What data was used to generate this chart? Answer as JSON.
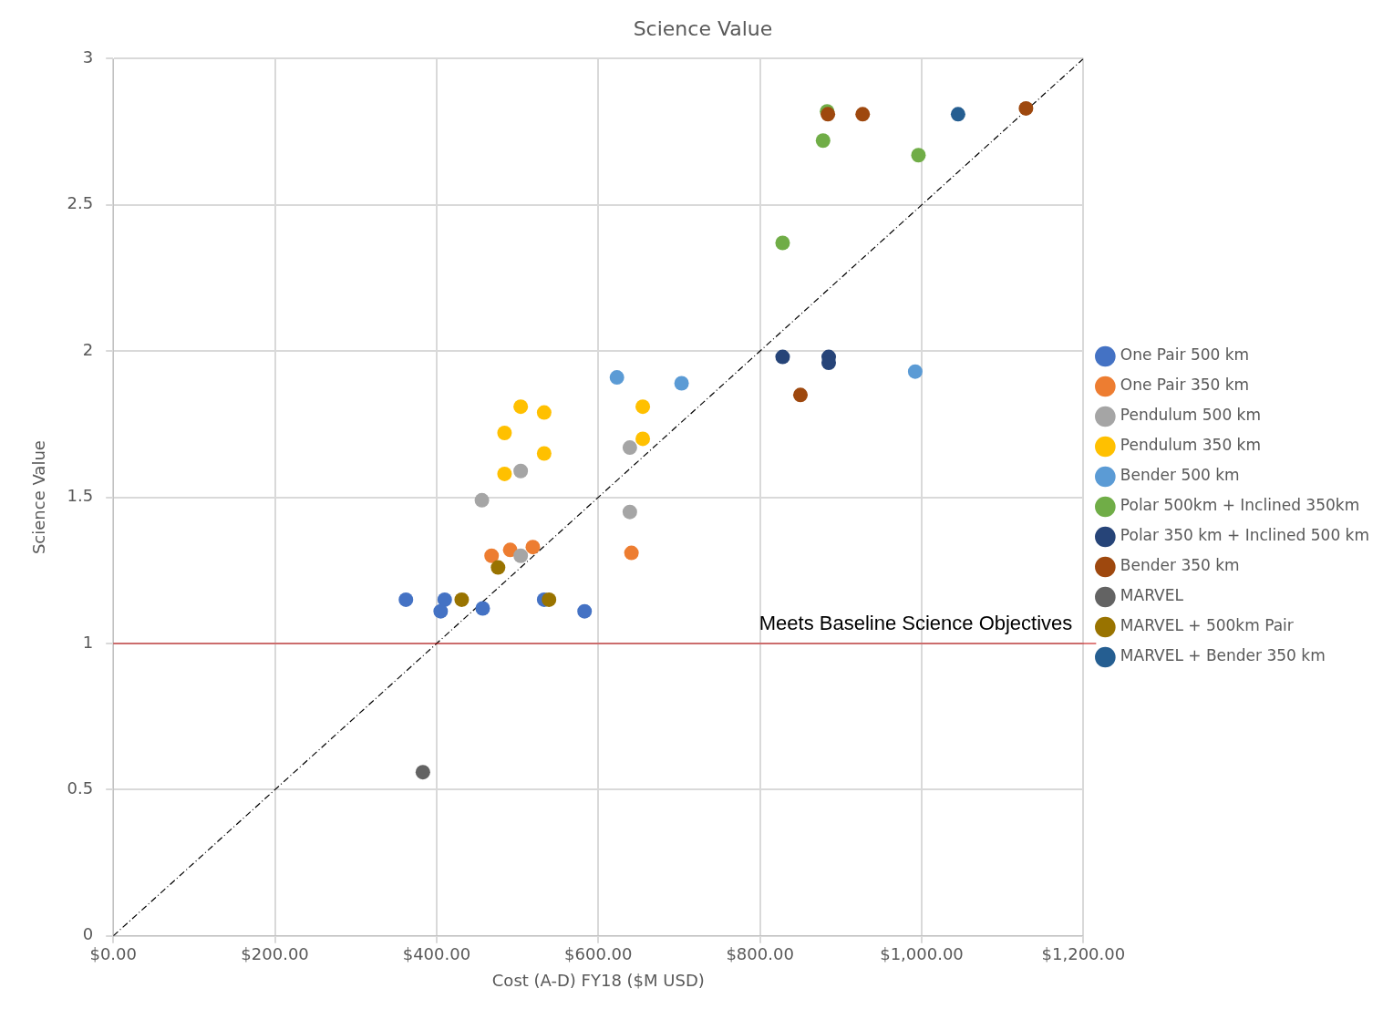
{
  "chart_data": {
    "type": "scatter",
    "title": "Science Value",
    "xlabel": "Cost (A-D) FY18 ($M USD)",
    "ylabel": "Science Value",
    "xlim": [
      0,
      1200
    ],
    "xticks": [
      {
        "value": 0,
        "label": "$0.00"
      },
      {
        "value": 200,
        "label": "$200.00"
      },
      {
        "value": 400,
        "label": "$400.00"
      },
      {
        "value": 600,
        "label": "$600.00"
      },
      {
        "value": 800,
        "label": "$800.00"
      },
      {
        "value": 1000,
        "label": "$1,000.00"
      },
      {
        "value": 1200,
        "label": "$1,200.00"
      }
    ],
    "ylim": [
      0,
      3
    ],
    "yticks": [
      0,
      0.5,
      1,
      1.5,
      2,
      2.5,
      3
    ],
    "grid": true,
    "legend": "right",
    "marker": "circle",
    "series": [
      {
        "name": "One Pair 500 km",
        "color": "#4472c4",
        "x": [
          362,
          410,
          405,
          457,
          533,
          583
        ],
        "values": [
          1.15,
          1.15,
          1.11,
          1.12,
          1.15,
          1.11
        ]
      },
      {
        "name": "One Pair 350 km",
        "color": "#ed7d31",
        "x": [
          468,
          491,
          519,
          641
        ],
        "values": [
          1.3,
          1.32,
          1.33,
          1.31
        ]
      },
      {
        "name": "Pendulum 500 km",
        "color": "#a5a5a5",
        "x": [
          456,
          504,
          504,
          639,
          639
        ],
        "values": [
          1.49,
          1.59,
          1.3,
          1.67,
          1.45
        ]
      },
      {
        "name": "Pendulum 350 km",
        "color": "#ffc000",
        "x": [
          484,
          504,
          533,
          484,
          533,
          655,
          655
        ],
        "values": [
          1.72,
          1.81,
          1.79,
          1.58,
          1.65,
          1.81,
          1.7
        ]
      },
      {
        "name": "Bender 500 km",
        "color": "#5b9bd5",
        "x": [
          623,
          703,
          992
        ],
        "values": [
          1.91,
          1.89,
          1.93
        ]
      },
      {
        "name": "Polar 500km + Inclined 350km",
        "color": "#70ad47",
        "x": [
          883,
          878,
          828,
          996
        ],
        "values": [
          2.82,
          2.72,
          2.37,
          2.67
        ]
      },
      {
        "name": "Polar 350 km + Inclined 500 km",
        "color": "#264478",
        "x": [
          828,
          885,
          885
        ],
        "values": [
          1.98,
          1.98,
          1.96
        ]
      },
      {
        "name": "Bender 350 km",
        "color": "#9e480e",
        "x": [
          884,
          927,
          1129,
          850
        ],
        "values": [
          2.81,
          2.81,
          2.83,
          1.85
        ]
      },
      {
        "name": "MARVEL",
        "color": "#636363",
        "x": [
          383
        ],
        "values": [
          0.56
        ]
      },
      {
        "name": "MARVEL + 500km Pair",
        "color": "#997300",
        "x": [
          431,
          476,
          539
        ],
        "values": [
          1.15,
          1.26,
          1.15
        ]
      },
      {
        "name": "MARVEL + Bender 350 km",
        "color": "#255e91",
        "x": [
          1045
        ],
        "values": [
          2.81
        ]
      },
      {
        "type": "line",
        "color": "#000000",
        "line_style": "dashed",
        "marker": "none",
        "x": [
          0,
          1200
        ],
        "values": [
          0,
          3
        ]
      }
    ],
    "ref_lines": [
      {
        "axis": "y",
        "value": 1,
        "label": "Meets Baseline Science Objectives",
        "color": "#c00000"
      }
    ]
  }
}
